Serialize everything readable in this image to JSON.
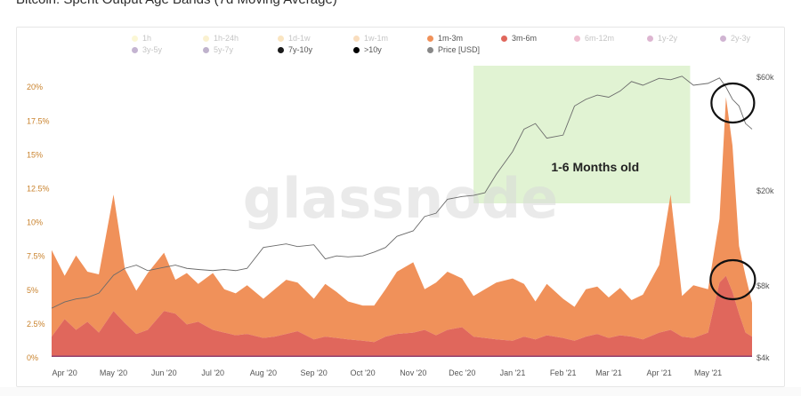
{
  "title": "Bitcoin: Spent Output Age Bands (7d Moving Average)",
  "watermark": "glassnode",
  "annotation": "1-6 Months old",
  "colors": {
    "band_1m_3m": "#f0915a",
    "band_3m_6m": "#e0675c",
    "price_line": "#6b6b6b",
    "highlight": "#d9f0c8",
    "axis_text_left": "#c9822c",
    "axis_text_right": "#555555"
  },
  "legend": [
    {
      "label": "1h",
      "color": "#f6ea8a",
      "active": false
    },
    {
      "label": "1h-24h",
      "color": "#f3d97a",
      "active": false
    },
    {
      "label": "1d-1w",
      "color": "#f2b64f",
      "active": false
    },
    {
      "label": "1w-1m",
      "color": "#f0a048",
      "active": false
    },
    {
      "label": "1m-3m",
      "color": "#f0915a",
      "active": true
    },
    {
      "label": "3m-6m",
      "color": "#e0675c",
      "active": true
    },
    {
      "label": "6m-12m",
      "color": "#d2447a",
      "active": false
    },
    {
      "label": "1y-2y",
      "color": "#a0307e",
      "active": false
    },
    {
      "label": "2y-3y",
      "color": "#7a2a80",
      "active": false
    },
    {
      "label": "3y-5y",
      "color": "#5a2a7e",
      "active": false
    },
    {
      "label": "5y-7y",
      "color": "#4a2670",
      "active": false
    },
    {
      "label": "7y-10y",
      "color": "#1a1a1a",
      "active": true
    },
    {
      "label": ">10y",
      "color": "#000000",
      "active": true
    },
    {
      "label": "Price [USD]",
      "color": "#888888",
      "active": true
    }
  ],
  "chart_data": {
    "type": "area",
    "stacked": true,
    "title": "Bitcoin: Spent Output Age Bands (7d Moving Average)",
    "x": [
      "2020-03-24",
      "2020-04-01",
      "2020-04-08",
      "2020-04-15",
      "2020-04-22",
      "2020-05-01",
      "2020-05-08",
      "2020-05-15",
      "2020-05-22",
      "2020-06-01",
      "2020-06-08",
      "2020-06-15",
      "2020-06-22",
      "2020-07-01",
      "2020-07-08",
      "2020-07-15",
      "2020-07-22",
      "2020-08-01",
      "2020-08-08",
      "2020-08-15",
      "2020-08-22",
      "2020-09-01",
      "2020-09-08",
      "2020-09-15",
      "2020-09-22",
      "2020-10-01",
      "2020-10-08",
      "2020-10-15",
      "2020-10-22",
      "2020-11-01",
      "2020-11-08",
      "2020-11-15",
      "2020-11-22",
      "2020-12-01",
      "2020-12-08",
      "2020-12-15",
      "2020-12-22",
      "2021-01-01",
      "2021-01-08",
      "2021-01-15",
      "2021-01-22",
      "2021-02-01",
      "2021-02-08",
      "2021-02-15",
      "2021-02-22",
      "2021-03-01",
      "2021-03-08",
      "2021-03-15",
      "2021-03-22",
      "2021-04-01",
      "2021-04-08",
      "2021-04-15",
      "2021-04-22",
      "2021-05-01",
      "2021-05-08",
      "2021-05-12",
      "2021-05-16",
      "2021-05-20",
      "2021-05-24",
      "2021-05-28"
    ],
    "series": [
      {
        "name": "3m-6m",
        "values": [
          1.5,
          2.8,
          2.0,
          2.6,
          1.8,
          3.4,
          2.5,
          1.7,
          2.0,
          3.4,
          3.2,
          2.4,
          2.6,
          2.0,
          1.8,
          1.6,
          1.7,
          1.4,
          1.5,
          1.7,
          1.9,
          1.3,
          1.5,
          1.4,
          1.3,
          1.2,
          1.1,
          1.5,
          1.7,
          1.8,
          2.0,
          1.6,
          2.0,
          2.2,
          1.5,
          1.4,
          1.3,
          1.2,
          1.5,
          1.3,
          1.6,
          1.4,
          1.2,
          1.5,
          1.7,
          1.4,
          1.6,
          1.5,
          1.3,
          1.8,
          2.0,
          1.5,
          1.4,
          1.8,
          5.5,
          6.0,
          4.8,
          3.2,
          1.8,
          1.5
        ]
      },
      {
        "name": "1m-3m",
        "values": [
          6.4,
          3.2,
          5.5,
          3.7,
          4.3,
          8.6,
          4.0,
          3.2,
          4.2,
          4.3,
          2.5,
          3.8,
          2.8,
          4.2,
          3.2,
          3.1,
          3.6,
          2.9,
          3.5,
          4.0,
          3.6,
          3.0,
          3.9,
          3.4,
          2.8,
          2.6,
          2.7,
          3.5,
          4.6,
          5.2,
          3.0,
          3.9,
          4.3,
          3.6,
          3.0,
          3.6,
          4.2,
          4.6,
          3.9,
          2.8,
          3.8,
          2.9,
          2.5,
          3.5,
          3.5,
          3.0,
          3.5,
          2.7,
          3.3,
          5.0,
          10.0,
          3.0,
          3.9,
          3.2,
          4.7,
          13.2,
          10.8,
          5.0,
          4.2,
          2.5
        ]
      }
    ],
    "price": [
      6400,
      6800,
      7000,
      7100,
      7400,
      8800,
      9400,
      9700,
      9200,
      9500,
      9700,
      9400,
      9300,
      9200,
      9300,
      9200,
      9400,
      11500,
      11700,
      11900,
      11600,
      11800,
      10300,
      10600,
      10500,
      10600,
      11000,
      11500,
      12800,
      13500,
      15500,
      16000,
      18300,
      18800,
      19000,
      19500,
      23300,
      29000,
      36000,
      38000,
      33000,
      34000,
      45000,
      48000,
      50000,
      49000,
      52000,
      57000,
      55000,
      58800,
      58000,
      60000,
      55000,
      56000,
      59000,
      54000,
      48000,
      45000,
      38000,
      36000
    ],
    "y_left": {
      "ticks": [
        "0%",
        "2.5%",
        "5%",
        "7.5%",
        "10%",
        "12.5%",
        "15%",
        "17.5%",
        "20%"
      ],
      "range": [
        0,
        21
      ]
    },
    "y_right": {
      "ticks": [
        "$4k",
        "$8k",
        "$20k",
        "$60k"
      ],
      "scale": "log",
      "range": [
        4000,
        62000
      ]
    },
    "x_ticks": [
      "Apr '20",
      "May '20",
      "Jun '20",
      "Jul '20",
      "Aug '20",
      "Sep '20",
      "Oct '20",
      "Nov '20",
      "Dec '20",
      "Jan '21",
      "Feb '21",
      "Mar '21",
      "Apr '21",
      "May '21"
    ],
    "legend_position": "top",
    "grid": false
  }
}
